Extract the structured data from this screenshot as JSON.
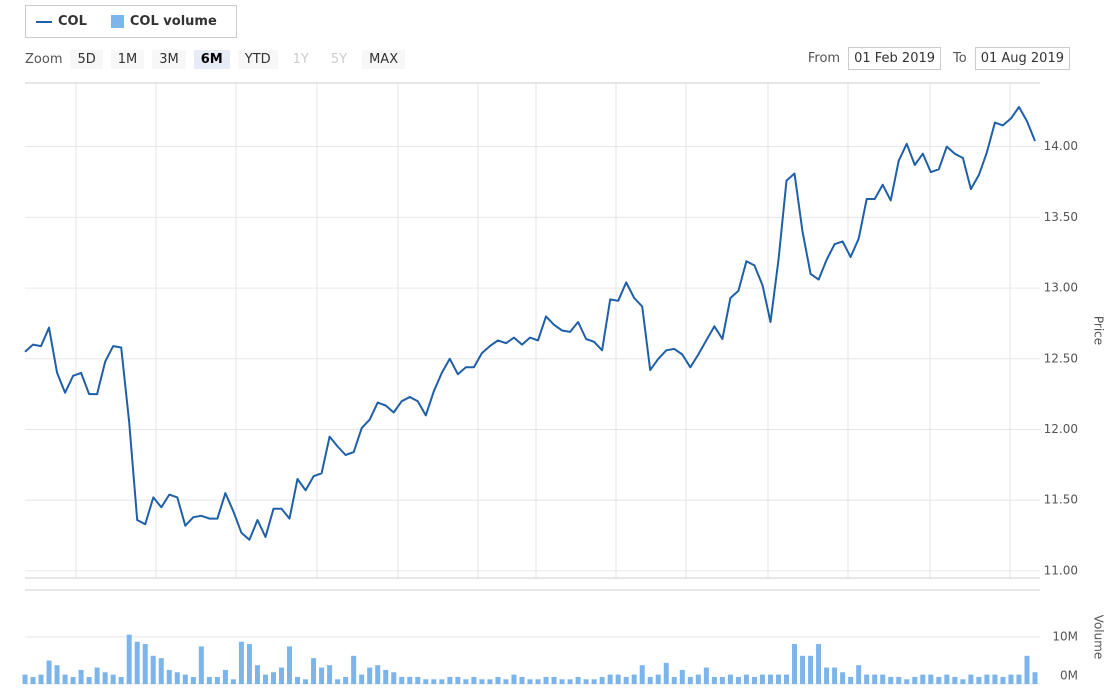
{
  "ui": {
    "zoom_label": "Zoom",
    "zoom_buttons": [
      {
        "label": "5D",
        "state": "normal"
      },
      {
        "label": "1M",
        "state": "normal"
      },
      {
        "label": "3M",
        "state": "normal"
      },
      {
        "label": "6M",
        "state": "selected"
      },
      {
        "label": "YTD",
        "state": "normal"
      },
      {
        "label": "1Y",
        "state": "disabled"
      },
      {
        "label": "5Y",
        "state": "disabled"
      },
      {
        "label": "MAX",
        "state": "normal"
      }
    ],
    "from_label": "From",
    "from": "01 Feb 2019",
    "to_label": "To",
    "to": "01 Aug 2019"
  },
  "chart_data": [
    {
      "type": "line",
      "ylabel": "Price",
      "ylim": [
        10.95,
        14.45
      ],
      "yticks": [
        {
          "value": 11,
          "label": "11.00"
        },
        {
          "value": 11.5,
          "label": "11.50"
        },
        {
          "value": 12,
          "label": "12.00"
        },
        {
          "value": 12.5,
          "label": "12.50"
        },
        {
          "value": 13,
          "label": "13.00"
        },
        {
          "value": 13.5,
          "label": "13.50"
        },
        {
          "value": 14,
          "label": "14.00"
        }
      ],
      "grid": true,
      "series": [
        {
          "name": "COL",
          "color": "#1f5fa8",
          "values": [
            12.55,
            12.6,
            12.59,
            12.72,
            12.4,
            12.26,
            12.38,
            12.4,
            12.25,
            12.25,
            12.48,
            12.59,
            12.58,
            12.05,
            11.36,
            11.33,
            11.52,
            11.45,
            11.54,
            11.52,
            11.32,
            11.38,
            11.39,
            11.37,
            11.37,
            11.55,
            11.42,
            11.27,
            11.22,
            11.36,
            11.24,
            11.44,
            11.44,
            11.37,
            11.65,
            11.57,
            11.67,
            11.69,
            11.95,
            11.88,
            11.82,
            11.84,
            12.01,
            12.07,
            12.19,
            12.17,
            12.12,
            12.2,
            12.23,
            12.2,
            12.1,
            12.27,
            12.4,
            12.5,
            12.39,
            12.44,
            12.44,
            12.54,
            12.59,
            12.63,
            12.61,
            12.65,
            12.6,
            12.65,
            12.63,
            12.8,
            12.74,
            12.7,
            12.69,
            12.76,
            12.64,
            12.62,
            12.56,
            12.92,
            12.91,
            13.04,
            12.93,
            12.87,
            12.42,
            12.5,
            12.56,
            12.57,
            12.53,
            12.44,
            12.53,
            12.63,
            12.73,
            12.64,
            12.93,
            12.98,
            13.19,
            13.16,
            13.02,
            12.76,
            13.2,
            13.76,
            13.81,
            13.4,
            13.1,
            13.06,
            13.2,
            13.31,
            13.33,
            13.22,
            13.35,
            13.63,
            13.63,
            13.73,
            13.62,
            13.9,
            14.02,
            13.87,
            13.95,
            13.82,
            13.84,
            14.0,
            13.95,
            13.92,
            13.7,
            13.8,
            13.96,
            14.17,
            14.15,
            14.2,
            14.28,
            14.18,
            14.04
          ]
        }
      ]
    },
    {
      "type": "bar",
      "ylabel": "Volume",
      "ylim": [
        0,
        20
      ],
      "yticks": [
        {
          "value": 0,
          "label": "0M"
        },
        {
          "value": 10,
          "label": "10M"
        }
      ],
      "grid": true,
      "series": [
        {
          "name": "COL volume",
          "color": "#7cb5ec",
          "values": [
            2,
            1.5,
            2,
            5,
            4,
            2,
            1.5,
            3,
            1.5,
            3.5,
            2.5,
            2,
            1.5,
            10.5,
            9,
            8.5,
            6,
            5.5,
            3,
            2.5,
            2,
            1.5,
            8,
            1.5,
            1.5,
            3,
            1,
            9,
            8.5,
            4,
            2,
            2.5,
            3.5,
            8,
            1.5,
            1,
            5.5,
            3.5,
            4,
            1,
            1.5,
            6,
            2,
            3.5,
            4,
            3,
            2.5,
            1.5,
            1.5,
            1.5,
            1,
            1,
            1,
            1.5,
            1.5,
            1,
            1.5,
            1,
            1,
            1.5,
            1,
            2,
            1.5,
            1,
            1,
            1.5,
            1.5,
            1,
            1,
            1.5,
            1,
            1,
            1.5,
            2,
            2,
            1.5,
            2,
            4,
            1.5,
            2,
            4.5,
            1.5,
            3,
            1.5,
            2,
            3.5,
            1.5,
            1.5,
            2,
            1.5,
            2,
            1.5,
            2,
            2,
            2,
            2,
            8.5,
            6,
            6,
            8.5,
            3.5,
            3.5,
            2.5,
            1.5,
            4,
            2,
            2,
            2,
            1.5,
            1.5,
            1,
            1.5,
            2,
            2,
            1.5,
            2,
            1.5,
            1,
            2,
            1.5,
            2,
            2,
            1.5,
            2,
            2,
            6,
            2.5
          ]
        }
      ]
    }
  ]
}
